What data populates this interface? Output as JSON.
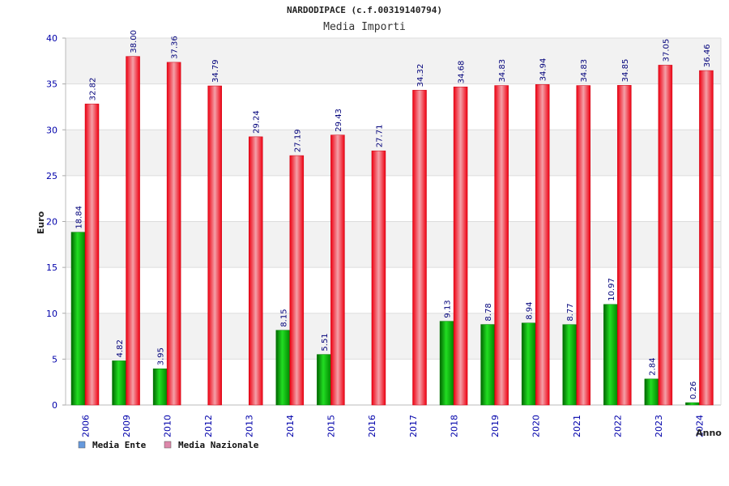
{
  "chart_data": {
    "type": "bar",
    "title": "NARDODIPACE (c.f.00319140794)",
    "subtitle": "Media Importi",
    "xlabel": "Anno",
    "ylabel": "Euro",
    "ylim": [
      0,
      40
    ],
    "yticks": [
      0,
      5,
      10,
      15,
      20,
      25,
      30,
      35,
      40
    ],
    "grid": true,
    "legend_position": "bottom-left",
    "categories": [
      "2006",
      "2009",
      "2010",
      "2012",
      "2013",
      "2014",
      "2015",
      "2016",
      "2017",
      "2018",
      "2019",
      "2020",
      "2021",
      "2022",
      "2023",
      "2024"
    ],
    "series": [
      {
        "name": "Media Ente",
        "legend_color": "#6699dd",
        "bar_color": "#00aa00",
        "values": [
          18.84,
          4.82,
          3.95,
          null,
          null,
          8.15,
          5.51,
          null,
          null,
          9.13,
          8.78,
          8.94,
          8.77,
          10.97,
          2.84,
          0.26
        ],
        "labels": [
          "18.84",
          "4.82",
          "3.95",
          "",
          "",
          "8.15",
          "5.51",
          "",
          "",
          "9.13",
          "8.78",
          "8.94",
          "8.77",
          "10.97",
          "2.84",
          "0.26"
        ]
      },
      {
        "name": "Media Nazionale",
        "legend_color": "#dd88aa",
        "bar_color": "#ee1122",
        "values": [
          32.82,
          38.0,
          37.36,
          34.79,
          29.24,
          27.19,
          29.43,
          27.71,
          34.32,
          34.68,
          34.83,
          34.94,
          34.83,
          34.85,
          37.05,
          36.46
        ],
        "labels": [
          "32.82",
          "38.00",
          "37.36",
          "34.79",
          "29.24",
          "27.19",
          "29.43",
          "27.71",
          "34.32",
          "34.68",
          "34.83",
          "34.94",
          "34.83",
          "34.85",
          "37.05",
          "36.46"
        ]
      }
    ]
  }
}
